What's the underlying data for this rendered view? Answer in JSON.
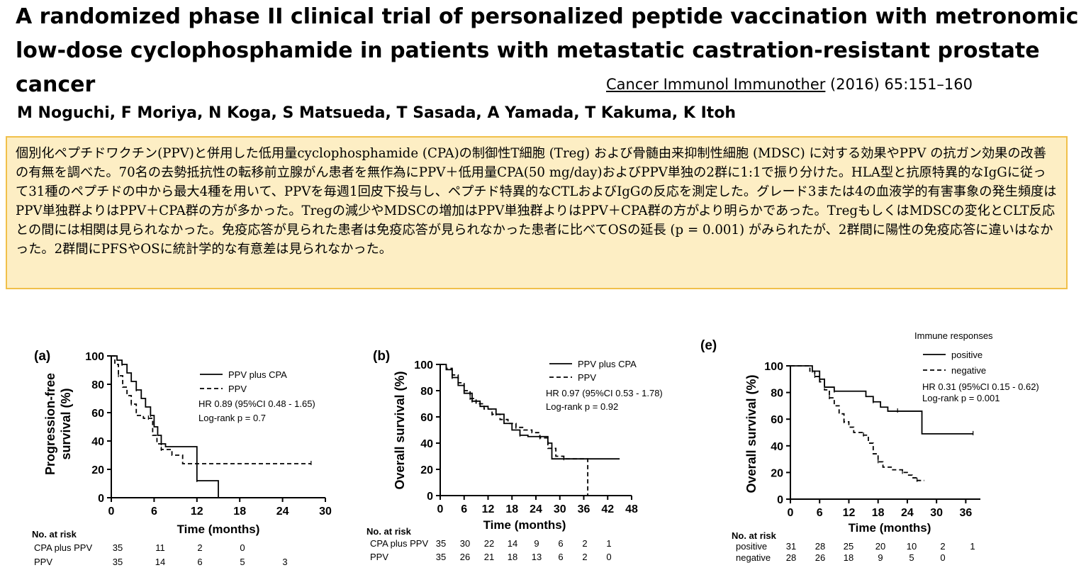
{
  "header": {
    "title": "A randomized phase II clinical trial of personalized peptide vaccination with metronomic low-dose cyclophosphamide in patients with metastatic castration-resistant prostate cancer",
    "journal": "Cancer Immunol Immunother",
    "citation_rest": " (2016) 65:151–160",
    "authors": "M Noguchi, F Moriya, N Koga, S Matsueda, T Sasada, A Yamada, T Kakuma, K Itoh"
  },
  "summary": {
    "text": "個別化ペプチドワクチン(PPV)と併用した低用量cyclophosphamide (CPA)の制御性T細胞 (Treg) および骨髄由来抑制性細胞 (MDSC) に対する効果やPPV の抗ガン効果の改善の有無を調べた。70名の去勢抵抗性の転移前立腺がん患者を無作為にPPV＋低用量CPA(50 mg/day)およびPPV単独の2群に1:1で振り分けた。HLA型と抗原特異的なIgGに従って31種のペプチドの中から最大4種を用いて、PPVを毎週1回皮下投与し、ペプチド特異的なCTLおよびIgGの反応を測定した。グレード3または4の血液学的有害事象の発生頻度はPPV単独群よりはPPV＋CPA群の方が多かった。Tregの減少やMDSCの増加はPPV単独群よりはPPV＋CPA群の方がより明らかであった。TregもしくはMDSCの変化とCLT反応との間には相関は見られなかった。免疫応答が見られた患者は免疫応答が見られなかった患者に比べてOSの延長 (p = 0.001) がみられたが、2群間に陽性の免疫応答に違いはなかった。2群間にPFSやOSに統計学的な有意差は見られなかった。"
  },
  "chart_data": [
    {
      "type": "line",
      "panel": "(a)",
      "ylabel": "Progression-free survival (%)",
      "xlabel": "Time (months)",
      "xlim": [
        0,
        30
      ],
      "ylim": [
        0,
        100
      ],
      "xticks": [
        0,
        6,
        12,
        18,
        24,
        30
      ],
      "yticks": [
        0,
        20,
        40,
        60,
        80,
        100
      ],
      "series": [
        {
          "name": "PPV plus CPA",
          "style": "solid",
          "x": [
            0,
            0.8,
            1.5,
            2.2,
            2.8,
            3.5,
            4.2,
            4.8,
            5.5,
            6.0,
            6.5,
            7.0,
            7.6,
            8.2,
            12.0,
            13.0,
            15.0
          ],
          "y": [
            100,
            97,
            94,
            88,
            82,
            76,
            70,
            64,
            58,
            50,
            44,
            38,
            36,
            36,
            12,
            12,
            0
          ]
        },
        {
          "name": "PPV",
          "style": "dashed",
          "x": [
            0,
            0.5,
            1.0,
            1.6,
            2.2,
            2.8,
            3.5,
            4.5,
            5.2,
            5.8,
            6.4,
            7.0,
            8.5,
            10.0,
            28.0
          ],
          "y": [
            100,
            94,
            86,
            78,
            72,
            66,
            58,
            56,
            56,
            44,
            38,
            34,
            30,
            24,
            24
          ]
        }
      ],
      "annotations": [
        "HR 0.89 (95%CI 0.48 - 1.65)",
        "Log-rank p = 0.7"
      ],
      "risk_table": {
        "title": "No. at risk",
        "rows": [
          {
            "label": "CPA plus PPV",
            "values": [
              "35",
              "11",
              "2",
              "0",
              ""
            ]
          },
          {
            "label": "PPV",
            "values": [
              "35",
              "14",
              "6",
              "5",
              "3"
            ]
          }
        ]
      }
    },
    {
      "type": "line",
      "panel": "(b)",
      "ylabel": "Overall survival (%)",
      "xlabel": "Time (months)",
      "xlim": [
        0,
        48
      ],
      "ylim": [
        0,
        100
      ],
      "xticks": [
        0,
        6,
        12,
        18,
        24,
        30,
        36,
        42,
        48
      ],
      "yticks": [
        0,
        20,
        40,
        60,
        80,
        100
      ],
      "series": [
        {
          "name": "PPV plus CPA",
          "style": "solid",
          "x": [
            0,
            1.5,
            3.0,
            4.5,
            6.0,
            8.0,
            10.0,
            12.0,
            14.0,
            16.0,
            18.0,
            20.0,
            22.0,
            24.0,
            27.0,
            28.0,
            45.0
          ],
          "y": [
            100,
            96,
            90,
            84,
            78,
            72,
            68,
            66,
            62,
            55,
            50,
            46,
            45,
            45,
            40,
            28,
            28
          ]
        },
        {
          "name": "PPV",
          "style": "dashed",
          "x": [
            0,
            1.5,
            3.0,
            4.5,
            6.0,
            7.5,
            9.0,
            11.0,
            13.0,
            15.0,
            17.0,
            19.0,
            21.0,
            23.0,
            25.0,
            27.0,
            29.0,
            31.0,
            37.0,
            37.0
          ],
          "y": [
            100,
            97,
            92,
            86,
            80,
            74,
            70,
            66,
            62,
            58,
            55,
            52,
            50,
            48,
            44,
            36,
            30,
            28,
            28,
            0
          ]
        }
      ],
      "annotations": [
        "HR 0.97 (95%CI 0.53 - 1.78)",
        "Log-rank p = 0.92"
      ],
      "risk_table": {
        "title": "No. at risk",
        "rows": [
          {
            "label": "CPA plus PPV",
            "values": [
              "35",
              "30",
              "22",
              "14",
              "9",
              "6",
              "2",
              "1"
            ]
          },
          {
            "label": "PPV",
            "values": [
              "35",
              "26",
              "21",
              "18",
              "13",
              "6",
              "2",
              "0"
            ]
          }
        ]
      }
    },
    {
      "type": "line",
      "panel": "(e)",
      "ylabel": "Overall survival (%)",
      "xlabel": "Time (months)",
      "xlim": [
        0,
        39
      ],
      "ylim": [
        0,
        100
      ],
      "xticks": [
        0,
        6,
        12,
        18,
        24,
        30,
        36
      ],
      "yticks": [
        0,
        20,
        40,
        60,
        80,
        100
      ],
      "legend_title": "Immune responses",
      "series": [
        {
          "name": "positive",
          "style": "solid",
          "x": [
            0,
            3.0,
            4.5,
            6.0,
            7.0,
            9.0,
            14.0,
            15.5,
            17.0,
            18.5,
            20.0,
            22.0,
            27.0,
            27.0,
            37.5
          ],
          "y": [
            100,
            100,
            96,
            90,
            84,
            81,
            81,
            77,
            73,
            69,
            66,
            66,
            66,
            49,
            49
          ]
        },
        {
          "name": "negative",
          "style": "dashed",
          "x": [
            0,
            4.0,
            5.0,
            6.0,
            7.0,
            8.0,
            9.0,
            10.0,
            11.0,
            12.0,
            13.0,
            15.0,
            16.0,
            17.0,
            18.0,
            19.0,
            21.0,
            23.0,
            24.0,
            25.0,
            26.0,
            27.5
          ],
          "y": [
            100,
            96,
            92,
            88,
            82,
            76,
            70,
            64,
            58,
            54,
            50,
            48,
            42,
            34,
            28,
            24,
            22,
            20,
            18,
            16,
            14,
            14
          ]
        }
      ],
      "annotations": [
        "HR 0.31 (95%CI 0.15 - 0.62)",
        "Log-rank p = 0.001"
      ],
      "risk_table": {
        "title": "No. at risk",
        "rows": [
          {
            "label": "positive",
            "values": [
              "31",
              "28",
              "25",
              "20",
              "10",
              "2",
              "1"
            ]
          },
          {
            "label": "negative",
            "values": [
              "28",
              "26",
              "18",
              "9",
              "5",
              "0",
              ""
            ]
          }
        ]
      }
    }
  ]
}
